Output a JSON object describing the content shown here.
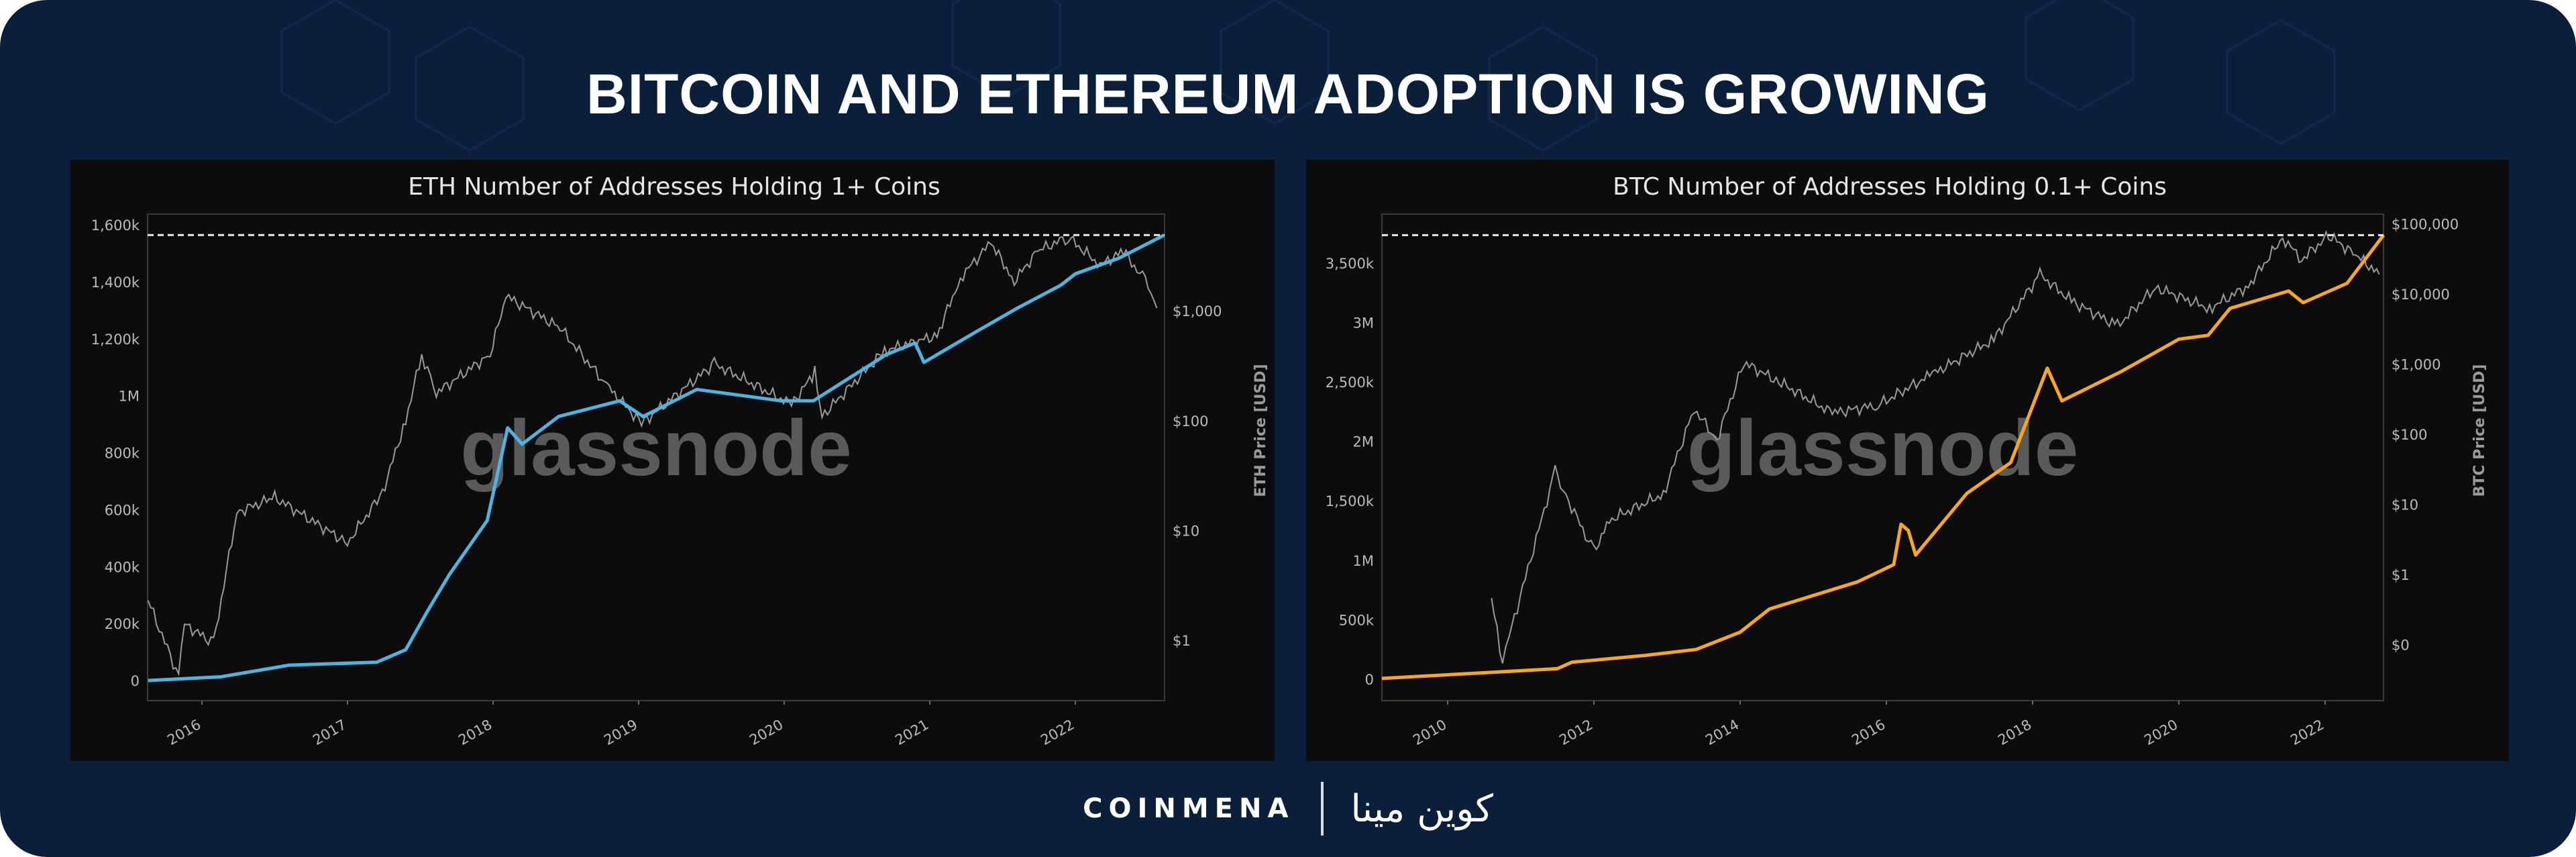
{
  "title": "BITCOIN AND ETHEREUM ADOPTION IS GROWING",
  "footer": {
    "brand_en": "COINMENA",
    "brand_ar": "كوين مينا"
  },
  "colors": {
    "background": "#0b1f3b",
    "panel": "#0c0c0c",
    "eth_line": "#4fb3e0",
    "btc_line": "#f5a623",
    "price_line": "#9a9a9a"
  },
  "chart_data": [
    {
      "type": "line",
      "title": "ETH Number of Addresses Holding 1+ Coins",
      "watermark": "glassnode",
      "ylabel_right": "ETH Price [USD]",
      "ylim": [
        0,
        1600000
      ],
      "yscale_right": "log",
      "x_ticks": [
        "2016",
        "2017",
        "2018",
        "2019",
        "2020",
        "2021",
        "2022"
      ],
      "y_ticks_left": [
        {
          "v": 0,
          "label": "0"
        },
        {
          "v": 200000,
          "label": "200k"
        },
        {
          "v": 400000,
          "label": "400k"
        },
        {
          "v": 600000,
          "label": "600k"
        },
        {
          "v": 800000,
          "label": "800k"
        },
        {
          "v": 1000000,
          "label": "1M"
        },
        {
          "v": 1200000,
          "label": "1,200k"
        },
        {
          "v": 1400000,
          "label": "1,400k"
        },
        {
          "v": 1600000,
          "label": "1,600k"
        }
      ],
      "y_ticks_right": [
        {
          "v": 1,
          "label": "$1"
        },
        {
          "v": 10,
          "label": "$10"
        },
        {
          "v": 100,
          "label": "$100"
        },
        {
          "v": 1000,
          "label": "$1,000"
        }
      ],
      "ath_line": 1564000,
      "series": [
        {
          "name": "Addresses holding 1+ ETH",
          "axis": "left",
          "x": [
            2015.63,
            2016.13,
            2016.6,
            2017.2,
            2017.4,
            2017.55,
            2017.7,
            2017.96,
            2018.1,
            2018.2,
            2018.45,
            2018.87,
            2019.03,
            2019.4,
            2019.98,
            2020.2,
            2020.7,
            2020.9,
            2020.96,
            2021.32,
            2021.6,
            2021.9,
            2022.0,
            2022.3,
            2022.61
          ],
          "values": [
            0,
            13000,
            54000,
            64000,
            108000,
            244000,
            372000,
            562000,
            887000,
            830000,
            927000,
            982000,
            927000,
            1022000,
            982000,
            982000,
            1144000,
            1185000,
            1117000,
            1225000,
            1307000,
            1388000,
            1428000,
            1483000,
            1564000
          ]
        },
        {
          "name": "ETH Price",
          "axis": "right",
          "x": [
            2015.63,
            2015.84,
            2015.88,
            2016.08,
            2016.24,
            2016.5,
            2017.0,
            2017.24,
            2017.4,
            2017.51,
            2017.61,
            2017.98,
            2018.09,
            2018.46,
            2018.78,
            2019.02,
            2019.52,
            2020.05,
            2020.21,
            2020.26,
            2020.69,
            2021.05,
            2021.21,
            2021.42,
            2021.58,
            2021.74,
            2021.95,
            2022.17,
            2022.33,
            2022.48,
            2022.56
          ],
          "values": [
            2.3,
            0.47,
            1.4,
            0.94,
            14.6,
            20,
            7.7,
            22,
            101,
            400,
            178,
            400,
            1360,
            700,
            210,
            94,
            330,
            140,
            275,
            110,
            434,
            595,
            2000,
            4200,
            1860,
            3500,
            4700,
            2600,
            3500,
            1860,
            1060
          ]
        }
      ]
    },
    {
      "type": "line",
      "title": "BTC Number of Addresses Holding 0.1+ Coins",
      "watermark": "glassnode",
      "ylabel_right": "BTC Price [USD]",
      "ylim": [
        0,
        3700000
      ],
      "yscale_right": "log",
      "x_ticks": [
        "2010",
        "2012",
        "2014",
        "2016",
        "2018",
        "2020",
        "2022"
      ],
      "y_ticks_left": [
        {
          "v": 0,
          "label": "0"
        },
        {
          "v": 500000,
          "label": "500k"
        },
        {
          "v": 1000000,
          "label": "1M"
        },
        {
          "v": 1500000,
          "label": "1,500k"
        },
        {
          "v": 2000000,
          "label": "2M"
        },
        {
          "v": 2500000,
          "label": "2,500k"
        },
        {
          "v": 3000000,
          "label": "3M"
        },
        {
          "v": 3500000,
          "label": "3,500k"
        }
      ],
      "y_ticks_right": [
        {
          "v": 0.1,
          "label": "$0"
        },
        {
          "v": 1,
          "label": "$1"
        },
        {
          "v": 10,
          "label": "$10"
        },
        {
          "v": 100,
          "label": "$100"
        },
        {
          "v": 1000,
          "label": "$1,000"
        },
        {
          "v": 10000,
          "label": "$10,000"
        },
        {
          "v": 100000,
          "label": "$100,000"
        }
      ],
      "ath_line": 3734000,
      "series": [
        {
          "name": "Addresses holding 0.1+ BTC",
          "axis": "left",
          "x": [
            2009.1,
            2011.5,
            2011.7,
            2012.7,
            2013.4,
            2014.0,
            2014.4,
            2015.6,
            2016.1,
            2016.2,
            2016.3,
            2016.4,
            2017.1,
            2017.7,
            2018.2,
            2018.4,
            2019.2,
            2020.0,
            2020.4,
            2020.7,
            2021.5,
            2021.7,
            2022.3,
            2022.8
          ],
          "values": [
            6000,
            88000,
            143000,
            200000,
            250000,
            395000,
            590000,
            817000,
            963000,
            1303000,
            1250000,
            1044000,
            1562000,
            1821000,
            2615000,
            2340000,
            2583000,
            2859000,
            2891000,
            3118000,
            3264000,
            3166000,
            3329000,
            3734000
          ]
        },
        {
          "name": "BTC Price",
          "axis": "right",
          "x": [
            2010.6,
            2010.75,
            2010.84,
            2011.47,
            2011.58,
            2012.0,
            2012.21,
            2012.95,
            2013.37,
            2013.68,
            2014.05,
            2014.53,
            2015.26,
            2015.89,
            2016.63,
            2017.47,
            2018.1,
            2018.53,
            2019.16,
            2019.68,
            2020.42,
            2020.95,
            2021.42,
            2021.68,
            2022.05,
            2022.42,
            2022.74
          ],
          "values": [
            0.46,
            0.05,
            0.13,
            30,
            16,
            2.1,
            5.9,
            14,
            230,
            83,
            1050,
            560,
            200,
            260,
            720,
            2240,
            19000,
            7900,
            3500,
            12400,
            6200,
            13000,
            63000,
            31000,
            68000,
            36000,
            19000
          ]
        }
      ]
    }
  ]
}
